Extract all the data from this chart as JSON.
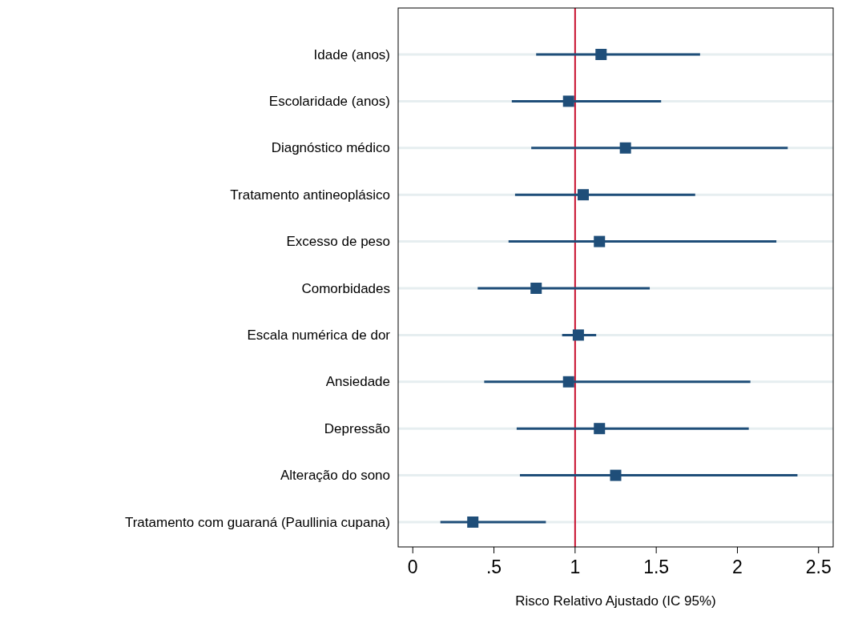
{
  "chart_data": {
    "type": "scatter",
    "orientation": "horizontal",
    "xlabel": "Risco Relativo Ajustado (IC 95%)",
    "categories": [
      "Idade (anos)",
      "Escolaridade (anos)",
      "Diagnóstico médico",
      "Tratamento antineoplásico",
      "Excesso de peso",
      "Comorbidades",
      "Escala numérica de dor",
      "Ansiedade",
      "Depressão",
      "Alteração do sono",
      "Tratamento com guaraná (Paullinia cupana)"
    ],
    "series": [
      {
        "color": "#1f4e79",
        "values": [
          1.16,
          0.96,
          1.31,
          1.05,
          1.15,
          0.76,
          1.02,
          0.96,
          1.15,
          1.25,
          0.37
        ],
        "errors": [
          [
            0.76,
            1.77
          ],
          [
            0.61,
            1.53
          ],
          [
            0.73,
            2.31
          ],
          [
            0.63,
            1.74
          ],
          [
            0.59,
            2.24
          ],
          [
            0.4,
            1.46
          ],
          [
            0.92,
            1.13
          ],
          [
            0.44,
            2.08
          ],
          [
            0.64,
            2.07
          ],
          [
            0.66,
            2.37
          ],
          [
            0.17,
            0.82
          ]
        ]
      }
    ],
    "xlim": [
      -0.09,
      2.59
    ],
    "xticks": [
      0,
      {
        "value": 0.5,
        "label": ".5"
      },
      1,
      1.5,
      2,
      2.5
    ],
    "ref_lines": [
      {
        "axis": "x",
        "value": 1,
        "color": "#c8102e"
      }
    ],
    "grid": "y",
    "marker": "square"
  }
}
